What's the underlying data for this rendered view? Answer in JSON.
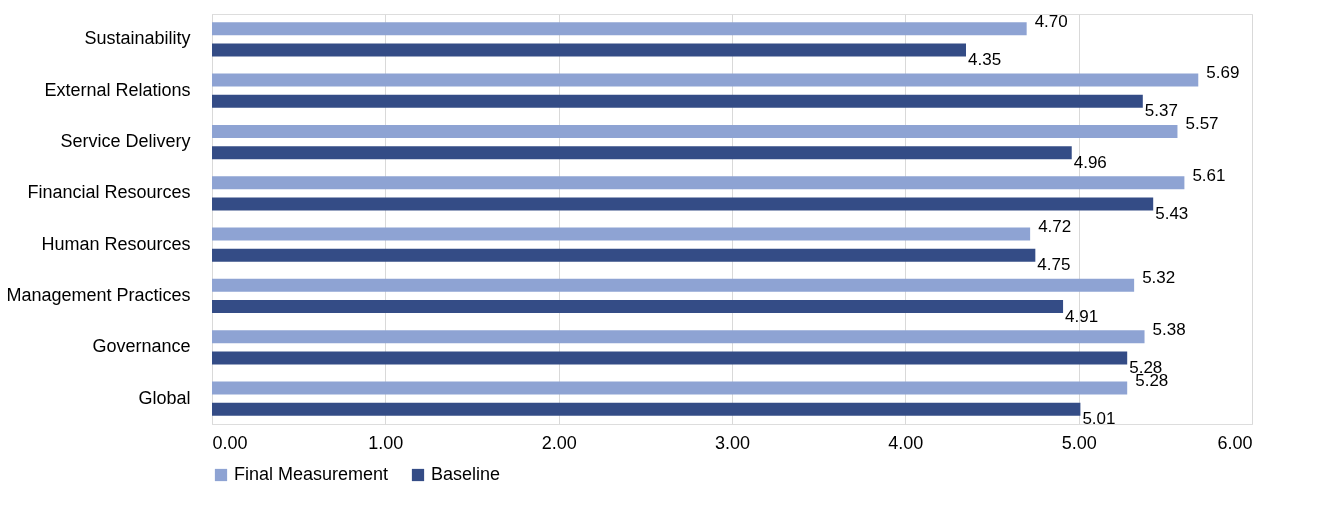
{
  "chart_data": {
    "type": "bar",
    "orientation": "horizontal",
    "categories": [
      "Sustainability",
      "External Relations",
      "Service Delivery",
      "Financial Resources",
      "Human Resources",
      "Management Practices",
      "Governance",
      "Global"
    ],
    "series": [
      {
        "name": "Final Measurement",
        "color": "#8ea3d3",
        "values": [
          4.7,
          5.69,
          5.57,
          5.61,
          4.72,
          5.32,
          5.38,
          5.28
        ],
        "value_labels": [
          "4.70",
          "5.69",
          "5.57",
          "5.61",
          "4.72",
          "5.32",
          "5.38",
          "5.28"
        ]
      },
      {
        "name": "Baseline",
        "color": "#344c86",
        "values": [
          4.35,
          5.37,
          4.96,
          5.43,
          4.75,
          4.91,
          5.28,
          5.01
        ],
        "value_labels": [
          "4.35",
          "5.37",
          "4.96",
          "5.43",
          "4.75",
          "4.91",
          "5.28",
          "5.01"
        ]
      }
    ],
    "xlim": [
      0,
      6
    ],
    "xticks": [
      {
        "value": 0,
        "label": "0.00"
      },
      {
        "value": 1,
        "label": "1.00"
      },
      {
        "value": 2,
        "label": "2.00"
      },
      {
        "value": 3,
        "label": "3.00"
      },
      {
        "value": 4,
        "label": "4.00"
      },
      {
        "value": 5,
        "label": "5.00"
      },
      {
        "value": 6,
        "label": "6.00"
      }
    ],
    "grid": "x",
    "legend": "bottom"
  }
}
